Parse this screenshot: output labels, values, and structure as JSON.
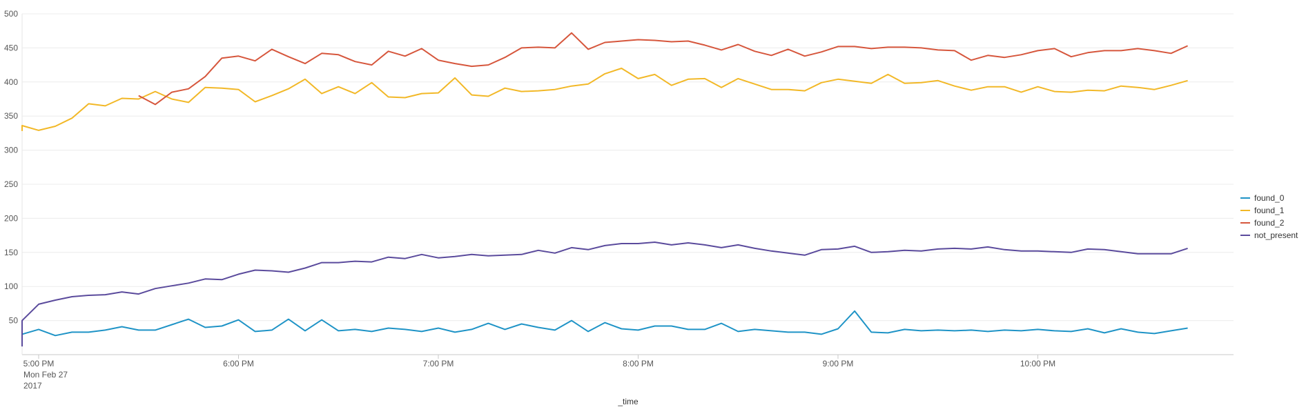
{
  "chart_data": {
    "type": "line",
    "xlabel": "_time",
    "ylabel": "",
    "ylim": [
      0,
      500
    ],
    "yticks": [
      50,
      100,
      150,
      200,
      250,
      300,
      350,
      400,
      450,
      500
    ],
    "grid": true,
    "legend_position": "right",
    "x_start": "16:50",
    "x_step_minutes": 5,
    "x_count": 72,
    "x_ticks": [
      {
        "time": "17:00",
        "label": "5:00 PM",
        "sub1": "Mon Feb 27",
        "sub2": "2017"
      },
      {
        "time": "18:00",
        "label": "6:00 PM"
      },
      {
        "time": "19:00",
        "label": "7:00 PM"
      },
      {
        "time": "20:00",
        "label": "8:00 PM"
      },
      {
        "time": "21:00",
        "label": "9:00 PM"
      },
      {
        "time": "22:00",
        "label": "10:00 PM"
      }
    ],
    "series": [
      {
        "name": "found_0",
        "color": "#1e93c6",
        "values": [
          22,
          30,
          37,
          28,
          33,
          33,
          36,
          41,
          36,
          36,
          44,
          52,
          40,
          42,
          51,
          34,
          36,
          52,
          35,
          51,
          35,
          37,
          34,
          39,
          37,
          34,
          39,
          33,
          37,
          46,
          37,
          45,
          40,
          36,
          50,
          34,
          47,
          38,
          36,
          42,
          42,
          37,
          37,
          46,
          34,
          37,
          35,
          33,
          33,
          30,
          38,
          64,
          33,
          32,
          37,
          35,
          36,
          35,
          36,
          34,
          36,
          35,
          37,
          35,
          34,
          38,
          32,
          38,
          33,
          31,
          35,
          39
        ]
      },
      {
        "name": "found_1",
        "color": "#f2b827",
        "values": [
          328,
          336,
          329,
          335,
          347,
          368,
          365,
          376,
          375,
          386,
          375,
          370,
          392,
          391,
          389,
          371,
          380,
          390,
          404,
          383,
          393,
          383,
          399,
          378,
          377,
          383,
          384,
          406,
          381,
          379,
          391,
          386,
          387,
          389,
          394,
          397,
          412,
          420,
          405,
          411,
          395,
          404,
          405,
          392,
          405,
          397,
          389,
          389,
          387,
          399,
          404,
          401,
          398,
          411,
          398,
          399,
          402,
          394,
          388,
          393,
          393,
          385,
          393,
          386,
          385,
          388,
          387,
          394,
          392,
          389,
          395,
          402
        ]
      },
      {
        "name": "found_2",
        "color": "#d6563c",
        "values": [
          null,
          null,
          null,
          null,
          null,
          null,
          null,
          null,
          380,
          367,
          385,
          390,
          408,
          435,
          438,
          431,
          448,
          437,
          427,
          442,
          440,
          430,
          425,
          445,
          438,
          449,
          432,
          427,
          423,
          425,
          436,
          450,
          451,
          450,
          472,
          448,
          458,
          460,
          462,
          461,
          459,
          460,
          454,
          447,
          455,
          445,
          439,
          448,
          438,
          444,
          452,
          452,
          449,
          451,
          451,
          450,
          447,
          446,
          432,
          439,
          436,
          440,
          446,
          449,
          437,
          443,
          446,
          446,
          449,
          446,
          442,
          453
        ]
      },
      {
        "name": "not_present",
        "color": "#5a4a9c",
        "values": [
          12,
          50,
          74,
          80,
          85,
          87,
          88,
          92,
          89,
          97,
          101,
          105,
          111,
          110,
          118,
          124,
          123,
          121,
          127,
          135,
          135,
          137,
          136,
          143,
          141,
          147,
          142,
          144,
          147,
          145,
          146,
          147,
          153,
          149,
          157,
          154,
          160,
          163,
          163,
          165,
          161,
          164,
          161,
          157,
          161,
          156,
          152,
          149,
          146,
          154,
          155,
          159,
          150,
          151,
          153,
          152,
          155,
          156,
          155,
          158,
          154,
          152,
          152,
          151,
          150,
          155,
          154,
          151,
          148,
          148,
          148,
          156
        ]
      }
    ]
  }
}
